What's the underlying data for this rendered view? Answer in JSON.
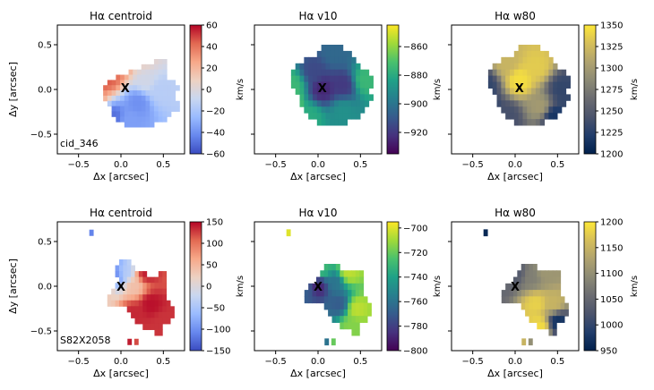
{
  "chart_data": [
    {
      "type": "heatmap",
      "title": "Hα centroid",
      "xlabel": "Δx [arcsec]",
      "ylabel": "Δy [arcsec]",
      "xlim": [
        -0.75,
        0.75
      ],
      "ylim": [
        -0.72,
        0.72
      ],
      "xticks": [
        "−0.5",
        "0.0",
        "0.5"
      ],
      "yticks": [
        "0.5",
        "0.0",
        "−0.5"
      ],
      "colormap": "coolwarm",
      "colorbar": {
        "label": "km/s",
        "min": -60,
        "max": 60,
        "ticks": [
          "60",
          "40",
          "20",
          "0",
          "−20",
          "−40",
          "−60"
        ]
      },
      "annotation": "cid_346",
      "marker": {
        "label": "X",
        "x": 0.05,
        "y": 0.02
      },
      "map": {
        "rows": [
          "...............xxx....",
          "............xxxxxx....",
          ".........xxxxxxxxx....",
          "......xxxxxxxxxxxx....",
          "....xxxxxxxxxxxxxxxx..",
          "...xxxxxxxxxxxxxxxxxx.",
          "...xxxxxxxxxxxxxxxxx..",
          "...xxxxxxxxxxxxxxxxx..",
          "....xxxxxxxxxxxxxxxxx.",
          ".....xxxxxxxxxxxxxxxx.",
          ".....xxxxxxxxxxxxxx...",
          "......xxxxxxxxxxxx....",
          "........xxxxxxx......."
        ],
        "x0": -0.36,
        "x1": 0.74,
        "y_top": 0.34,
        "y_bottom": -0.42,
        "stops": [
          {
            "x": -0.35,
            "y": 0.05,
            "v": 55
          },
          {
            "x": -0.15,
            "y": 0.15,
            "v": 45
          },
          {
            "x": 0.0,
            "y": 0.3,
            "v": 35
          },
          {
            "x": 0.25,
            "y": 0.32,
            "v": 5
          },
          {
            "x": 0.3,
            "y": 0.1,
            "v": -5
          },
          {
            "x": 0.45,
            "y": 0.0,
            "v": -15
          },
          {
            "x": 0.2,
            "y": -0.15,
            "v": -40
          },
          {
            "x": -0.1,
            "y": -0.3,
            "v": -50
          },
          {
            "x": 0.1,
            "y": -0.35,
            "v": -35
          },
          {
            "x": -0.3,
            "y": -0.15,
            "v": 25
          }
        ]
      }
    },
    {
      "type": "heatmap",
      "title": "Hα v10",
      "xlabel": "Δx [arcsec]",
      "ylabel": "",
      "xlim": [
        -0.75,
        0.75
      ],
      "ylim": [
        -0.72,
        0.72
      ],
      "xticks": [
        "−0.5",
        "0.0",
        "0.5"
      ],
      "yticks": [],
      "colormap": "viridis",
      "colorbar": {
        "label": "km/s",
        "min": -935,
        "max": -845,
        "ticks": [
          "−860",
          "−880",
          "−900",
          "−920"
        ]
      },
      "annotation": "",
      "marker": {
        "label": "X",
        "x": 0.05,
        "y": 0.02
      },
      "map": {
        "rows": [
          ".........xxxxx........",
          "........xxxxxxxx......",
          ".....xxxxxxxxxxxx.....",
          "...xxxxxxxxxxxxxxx....",
          "..xxxxxxxxxxxxxxxxxx..",
          "..xxxxxxxxxxxxxxxxxxx.",
          "..xxxxxxxxxxxxxxxxxxx.",
          "...xxxxxxxxxxxxxxxxx..",
          "....xxxxxxxxxxxxxxxxx.",
          "....xxxxxxxxxxxxxxxx..",
          ".....xxxxxxxxxxxxxx...",
          "......xxxxxxxxxxxx....",
          "........xxxxxxx......."
        ],
        "x0": -0.42,
        "x1": 0.7,
        "y_top": 0.5,
        "y_bottom": -0.4,
        "stops": [
          {
            "x": 0.05,
            "y": 0.0,
            "v": -925
          },
          {
            "x": -0.05,
            "y": 0.2,
            "v": -915
          },
          {
            "x": 0.3,
            "y": 0.05,
            "v": -920
          },
          {
            "x": 0.2,
            "y": 0.4,
            "v": -905
          },
          {
            "x": -0.3,
            "y": 0.05,
            "v": -875
          },
          {
            "x": -0.38,
            "y": -0.15,
            "v": -850
          },
          {
            "x": -0.1,
            "y": -0.3,
            "v": -880
          },
          {
            "x": 0.3,
            "y": -0.25,
            "v": -890
          },
          {
            "x": 0.55,
            "y": 0.1,
            "v": -875
          }
        ]
      }
    },
    {
      "type": "heatmap",
      "title": "Hα w80",
      "xlabel": "Δx [arcsec]",
      "ylabel": "",
      "xlim": [
        -0.75,
        0.75
      ],
      "ylim": [
        -0.72,
        0.72
      ],
      "xticks": [
        "−0.5",
        "0.0",
        "0.5"
      ],
      "yticks": [],
      "colormap": "cividis",
      "colorbar": {
        "label": "km/s",
        "min": 1200,
        "max": 1350,
        "ticks": [
          "1350",
          "1325",
          "1300",
          "1275",
          "1250",
          "1225",
          "1200"
        ]
      },
      "annotation": "",
      "marker": {
        "label": "X",
        "x": 0.05,
        "y": 0.02
      },
      "map": {
        "rows": [
          ".........xxxxx........",
          "........xxxxxxxx......",
          ".....xxxxxxxxxxxx.....",
          "...xxxxxxxxxxxxxxx....",
          "..xxxxxxxxxxxxxxxxxx..",
          "..xxxxxxxxxxxxxxxxxxx.",
          "..xxxxxxxxxxxxxxxxxxx.",
          "...xxxxxxxxxxxxxxxxx..",
          "....xxxxxxxxxxxxxxxxx.",
          "....xxxxxxxxxxxxxxxx..",
          ".....xxxxxxxxxxxxxx...",
          "......xxxxxxxxxxxx....",
          "........xxxxxxx......."
        ],
        "x0": -0.42,
        "x1": 0.7,
        "y_top": 0.5,
        "y_bottom": -0.4,
        "stops": [
          {
            "x": 0.05,
            "y": 0.1,
            "v": 1345
          },
          {
            "x": 0.25,
            "y": 0.25,
            "v": 1335
          },
          {
            "x": -0.1,
            "y": 0.3,
            "v": 1320
          },
          {
            "x": -0.35,
            "y": 0.05,
            "v": 1230
          },
          {
            "x": -0.38,
            "y": -0.2,
            "v": 1210
          },
          {
            "x": -0.1,
            "y": -0.3,
            "v": 1240
          },
          {
            "x": 0.3,
            "y": -0.2,
            "v": 1300
          },
          {
            "x": 0.55,
            "y": 0.0,
            "v": 1230
          },
          {
            "x": 0.45,
            "y": -0.3,
            "v": 1215
          }
        ]
      }
    },
    {
      "type": "heatmap",
      "title": "Hα centroid",
      "xlabel": "Δx [arcsec]",
      "ylabel": "Δy [arcsec]",
      "xlim": [
        -0.75,
        0.75
      ],
      "ylim": [
        -0.72,
        0.72
      ],
      "xticks": [
        "−0.5",
        "0.0",
        "0.5"
      ],
      "yticks": [
        "0.5",
        "0.0",
        "−0.5"
      ],
      "colormap": "coolwarm",
      "colorbar": {
        "label": "km/s",
        "min": -150,
        "max": 150,
        "ticks": [
          "150",
          "100",
          "50",
          "0",
          "−50",
          "−100",
          "−150"
        ]
      },
      "annotation": "S82X2058",
      "marker": {
        "label": "X",
        "x": 0.0,
        "y": 0.0
      },
      "map": {
        "rows": [
          "......xxx.............",
          ".....xxxxx............",
          ".....xxxxxxxx...xx....",
          "......xxxxxxxxxxxx....",
          ".....xxxxxxxxxxxxx....",
          "....xxxxxxxxxxxxxx....",
          "...xxxxxxxxxxxxxxx....",
          "...xxxxxxxxxxxxxxxx...",
          "........xxxxxxxxxxxx..",
          ".........xxxxxxxxxxx..",
          "..........xxxxxxxxx...",
          "............xxxxx.....",
          "...............xx....."
        ],
        "x0": -0.3,
        "x1": 0.72,
        "y_top": 0.3,
        "y_bottom": -0.55,
        "extra": [
          {
            "x": -0.35,
            "y": 0.6,
            "v": -110
          },
          {
            "x": 0.1,
            "y": -0.62,
            "v": 140
          },
          {
            "x": 0.18,
            "y": -0.62,
            "v": 120
          }
        ],
        "stops": [
          {
            "x": -0.15,
            "y": 0.22,
            "v": -120
          },
          {
            "x": -0.05,
            "y": 0.12,
            "v": -100
          },
          {
            "x": 0.05,
            "y": 0.15,
            "v": -40
          },
          {
            "x": -0.2,
            "y": -0.05,
            "v": 30
          },
          {
            "x": 0.15,
            "y": 0.0,
            "v": 40
          },
          {
            "x": 0.3,
            "y": 0.15,
            "v": 140
          },
          {
            "x": 0.35,
            "y": -0.2,
            "v": 145
          },
          {
            "x": 0.15,
            "y": -0.3,
            "v": 135
          },
          {
            "x": 0.5,
            "y": -0.4,
            "v": 130
          }
        ]
      }
    },
    {
      "type": "heatmap",
      "title": "Hα v10",
      "xlabel": "Δx [arcsec]",
      "ylabel": "",
      "xlim": [
        -0.75,
        0.75
      ],
      "ylim": [
        -0.72,
        0.72
      ],
      "xticks": [
        "−0.5",
        "0.0",
        "0.5"
      ],
      "yticks": [],
      "colormap": "viridis",
      "colorbar": {
        "label": "km/s",
        "min": -800,
        "max": -695,
        "ticks": [
          "−700",
          "−720",
          "−740",
          "−760",
          "−780",
          "−800"
        ]
      },
      "annotation": "",
      "marker": {
        "label": "X",
        "x": 0.0,
        "y": 0.0
      },
      "map": {
        "rows": [
          "........xxxx..........",
          ".......xxxxxxxxxxx....",
          "......xxxxxxxxxxxx....",
          "....xxxxxxxxxxxxxx....",
          "...xxxxxxxxxxxxxxx....",
          "...xxxxxxxxxxxxxxxx...",
          "........xxxxxxxxxxxx..",
          ".........xxxxxxxxxxx..",
          "..........xxxxxxxxx...",
          "............xxxxx.....",
          "...............xx....."
        ],
        "x0": -0.3,
        "x1": 0.72,
        "y_top": 0.25,
        "y_bottom": -0.55,
        "extra": [
          {
            "x": -0.35,
            "y": 0.6,
            "v": -700
          },
          {
            "x": 0.1,
            "y": -0.62,
            "v": -760
          },
          {
            "x": 0.18,
            "y": -0.62,
            "v": -720
          }
        ],
        "stops": [
          {
            "x": -0.1,
            "y": 0.2,
            "v": -710
          },
          {
            "x": 0.05,
            "y": 0.2,
            "v": -730
          },
          {
            "x": 0.0,
            "y": 0.0,
            "v": -790
          },
          {
            "x": -0.15,
            "y": -0.05,
            "v": -770
          },
          {
            "x": 0.2,
            "y": 0.05,
            "v": -760
          },
          {
            "x": 0.35,
            "y": 0.15,
            "v": -705
          },
          {
            "x": 0.25,
            "y": -0.2,
            "v": -770
          },
          {
            "x": 0.45,
            "y": -0.25,
            "v": -705
          },
          {
            "x": 0.4,
            "y": -0.45,
            "v": -715
          }
        ]
      }
    },
    {
      "type": "heatmap",
      "title": "Hα w80",
      "xlabel": "Δx [arcsec]",
      "ylabel": "",
      "xlim": [
        -0.75,
        0.75
      ],
      "ylim": [
        -0.72,
        0.72
      ],
      "xticks": [
        "−0.5",
        "0.0",
        "0.5"
      ],
      "yticks": [],
      "colormap": "cividis",
      "colorbar": {
        "label": "km/s",
        "min": 950,
        "max": 1200,
        "ticks": [
          "1200",
          "1150",
          "1100",
          "1050",
          "1000",
          "950"
        ]
      },
      "annotation": "",
      "marker": {
        "label": "X",
        "x": 0.0,
        "y": 0.0
      },
      "map": {
        "rows": [
          "........xxxx..........",
          ".......xxxxxxxxxxx....",
          "......xxxxxxxxxxxx....",
          "....xxxxxxxxxxxxxx....",
          "...xxxxxxxxxxxxxxx....",
          "...xxxxxxxxxxxxxxxx...",
          "........xxxxxxxxxxxx..",
          ".........xxxxxxxxxxx..",
          "..........xxxxxxxxx...",
          "............xxxxx.....",
          "...............xx....."
        ],
        "x0": -0.3,
        "x1": 0.72,
        "y_top": 0.25,
        "y_bottom": -0.55,
        "extra": [
          {
            "x": -0.35,
            "y": 0.6,
            "v": 960
          },
          {
            "x": 0.1,
            "y": -0.62,
            "v": 1150
          },
          {
            "x": 0.18,
            "y": -0.62,
            "v": 1100
          }
        ],
        "stops": [
          {
            "x": -0.2,
            "y": 0.0,
            "v": 1050
          },
          {
            "x": 0.0,
            "y": 0.15,
            "v": 1030
          },
          {
            "x": 0.2,
            "y": 0.1,
            "v": 1080
          },
          {
            "x": 0.35,
            "y": 0.15,
            "v": 1110
          },
          {
            "x": 0.25,
            "y": -0.2,
            "v": 1180
          },
          {
            "x": 0.45,
            "y": -0.2,
            "v": 1150
          },
          {
            "x": 0.5,
            "y": -0.4,
            "v": 970
          },
          {
            "x": 0.3,
            "y": -0.45,
            "v": 1190
          }
        ]
      }
    }
  ]
}
